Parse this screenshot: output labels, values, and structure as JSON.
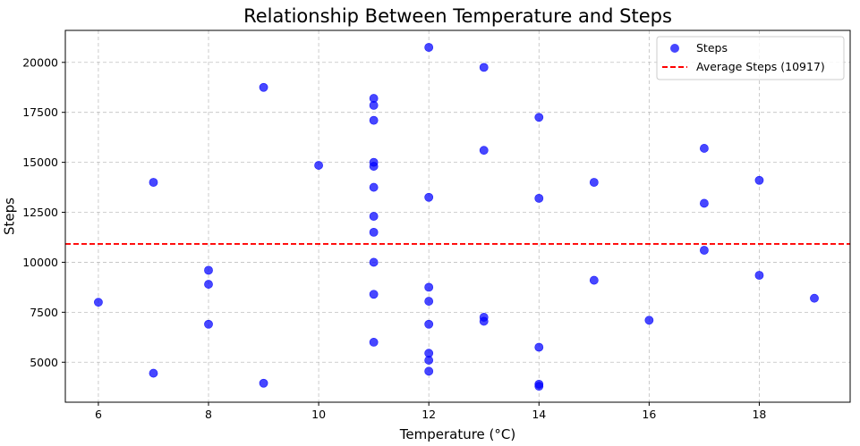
{
  "chart_data": {
    "type": "scatter",
    "title": "Relationship Between Temperature and Steps",
    "xlabel": "Temperature (°C)",
    "ylabel": "Steps",
    "xlim": [
      5.4,
      19.65
    ],
    "ylim": [
      3000,
      21600
    ],
    "x_ticks": [
      6,
      8,
      10,
      12,
      14,
      16,
      18
    ],
    "y_ticks": [
      5000,
      7500,
      10000,
      12500,
      15000,
      17500,
      20000
    ],
    "grid": true,
    "legend_position": "top-right",
    "series": [
      {
        "name": "Steps",
        "color": "#0000ff",
        "points": [
          [
            6,
            8000
          ],
          [
            7,
            14000
          ],
          [
            7,
            4450
          ],
          [
            8,
            9600
          ],
          [
            8,
            8900
          ],
          [
            8,
            6900
          ],
          [
            9,
            18750
          ],
          [
            9,
            3950
          ],
          [
            10,
            14850
          ],
          [
            11,
            18200
          ],
          [
            11,
            17850
          ],
          [
            11,
            17100
          ],
          [
            11,
            15000
          ],
          [
            11,
            14800
          ],
          [
            11,
            13750
          ],
          [
            11,
            12300
          ],
          [
            11,
            11500
          ],
          [
            11,
            10000
          ],
          [
            11,
            8400
          ],
          [
            11,
            6000
          ],
          [
            12,
            20750
          ],
          [
            12,
            13250
          ],
          [
            12,
            8750
          ],
          [
            12,
            8050
          ],
          [
            12,
            6900
          ],
          [
            12,
            5450
          ],
          [
            12,
            5100
          ],
          [
            12,
            4550
          ],
          [
            13,
            19750
          ],
          [
            13,
            15600
          ],
          [
            13,
            7250
          ],
          [
            13,
            7050
          ],
          [
            14,
            17250
          ],
          [
            14,
            13200
          ],
          [
            14,
            5750
          ],
          [
            14,
            3900
          ],
          [
            14,
            3800
          ],
          [
            15,
            14000
          ],
          [
            15,
            9100
          ],
          [
            16,
            7100
          ],
          [
            17,
            15700
          ],
          [
            17,
            12950
          ],
          [
            17,
            10600
          ],
          [
            18,
            14100
          ],
          [
            18,
            9350
          ],
          [
            19,
            8200
          ]
        ]
      }
    ],
    "reference_line": {
      "name": "Average Steps (10917)",
      "y": 10917,
      "color": "#ff0000",
      "style": "dashed"
    }
  }
}
